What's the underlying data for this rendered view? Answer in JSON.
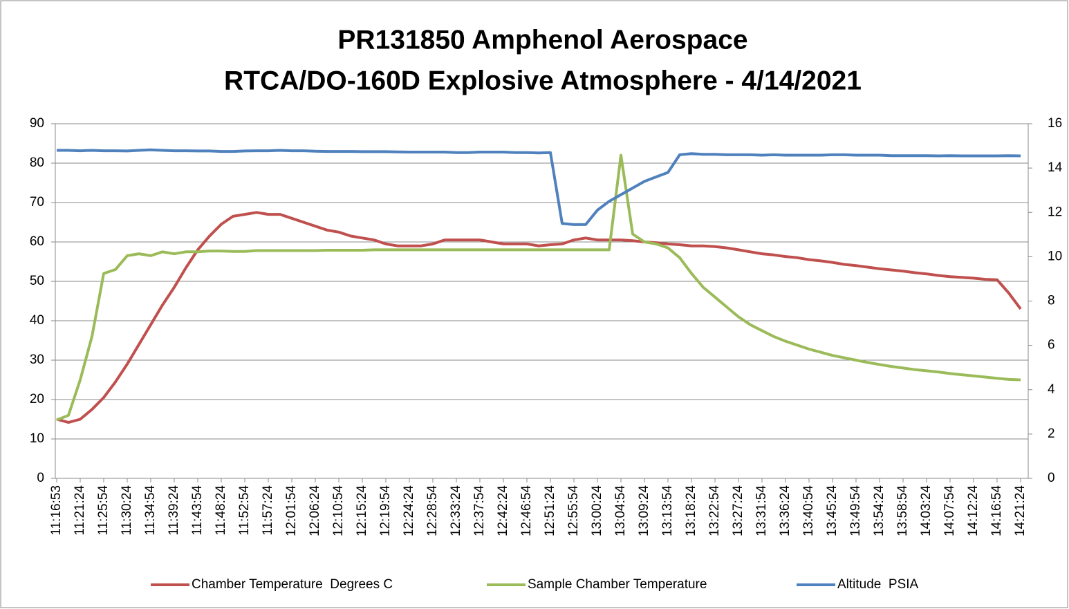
{
  "chart_data": {
    "type": "line",
    "title": [
      "PR131850 Amphenol Aerospace",
      "RTCA/DO-160D Explosive Atmosphere - 4/14/2021"
    ],
    "categories": [
      "11:16:53",
      null,
      "11:21:24",
      null,
      "11:25:54",
      null,
      "11:30:24",
      null,
      "11:34:54",
      null,
      "11:39:24",
      null,
      "11:43:54",
      null,
      "11:48:24",
      null,
      "11:52:54",
      null,
      "11:57:24",
      null,
      "12:01:54",
      null,
      "12:06:24",
      null,
      "12:10:54",
      null,
      "12:15:24",
      null,
      "12:19:54",
      null,
      "12:24:24",
      null,
      "12:28:54",
      null,
      "12:33:24",
      null,
      "12:37:54",
      null,
      "12:42:24",
      null,
      "12:46:54",
      null,
      "12:51:24",
      null,
      "12:55:54",
      null,
      "13:00:24",
      null,
      "13:04:54",
      null,
      "13:09:24",
      null,
      "13:13:54",
      null,
      "13:18:24",
      null,
      "13:22:54",
      null,
      "13:27:24",
      null,
      "13:31:54",
      null,
      "13:36:24",
      null,
      "13:40:54",
      null,
      "13:45:24",
      null,
      "13:49:54",
      null,
      "13:54:24",
      null,
      "13:58:54",
      null,
      "14:03:24",
      null,
      "14:07:54",
      null,
      "14:12:24",
      null,
      "14:16:54",
      null,
      "14:21:24"
    ],
    "series": [
      {
        "name": "Chamber Temperature  Degrees C",
        "color": "#c0504d",
        "values": [
          15,
          14.2,
          15,
          17.5,
          20.5,
          24.5,
          29,
          34,
          39,
          44,
          48.5,
          53.5,
          58,
          61.5,
          64.5,
          66.5,
          67,
          67.5,
          67,
          67,
          66,
          65,
          64,
          63,
          62.5,
          61.5,
          61,
          60.5,
          59.5,
          59,
          59,
          59,
          59.5,
          60.5,
          60.5,
          60.5,
          60.5,
          60,
          59.5,
          59.5,
          59.5,
          59,
          59.3,
          59.5,
          60.5,
          61,
          60.5,
          60.5,
          60.5,
          60.3,
          60,
          59.8,
          59.5,
          59.3,
          59,
          59,
          58.8,
          58.5,
          58,
          57.5,
          57,
          56.7,
          56.3,
          56,
          55.5,
          55.2,
          54.8,
          54.3,
          54,
          53.6,
          53.2,
          52.9,
          52.6,
          52.2,
          51.9,
          51.5,
          51.2,
          51,
          50.8,
          50.5,
          50.4,
          47,
          43
        ]
      },
      {
        "name": "Sample Chamber Temperature",
        "color": "#9bbb59",
        "values": [
          14.8,
          16,
          25,
          36,
          52,
          53,
          56.5,
          57,
          56.5,
          57.5,
          57,
          57.5,
          57.5,
          57.7,
          57.7,
          57.6,
          57.6,
          57.8,
          57.8,
          57.8,
          57.8,
          57.8,
          57.8,
          57.9,
          57.9,
          57.9,
          57.9,
          58,
          58,
          58,
          58,
          58,
          58,
          58,
          58,
          58,
          58,
          58,
          58,
          58,
          58,
          58,
          58,
          58,
          58,
          58,
          58,
          58,
          82,
          62,
          60,
          59.5,
          58.5,
          56,
          52,
          48.5,
          46,
          43.5,
          41,
          39,
          37.5,
          36,
          34.8,
          33.8,
          32.8,
          32,
          31.2,
          30.6,
          30,
          29.4,
          28.9,
          28.4,
          28,
          27.6,
          27.3,
          27,
          26.6,
          26.3,
          26,
          25.7,
          25.4,
          25.1,
          25
        ]
      },
      {
        "name": "Altitude  PSIA",
        "color": "#4f81bd",
        "axis": "y2",
        "values": [
          14.8,
          14.8,
          14.78,
          14.8,
          14.78,
          14.78,
          14.77,
          14.8,
          14.82,
          14.8,
          14.78,
          14.78,
          14.77,
          14.77,
          14.75,
          14.75,
          14.77,
          14.78,
          14.78,
          14.8,
          14.78,
          14.78,
          14.76,
          14.75,
          14.75,
          14.75,
          14.74,
          14.74,
          14.74,
          14.73,
          14.72,
          14.72,
          14.72,
          14.72,
          14.7,
          14.7,
          14.72,
          14.72,
          14.72,
          14.7,
          14.7,
          14.68,
          14.7,
          11.5,
          11.45,
          11.45,
          12.1,
          12.5,
          12.8,
          13.1,
          13.4,
          13.6,
          13.8,
          14.6,
          14.65,
          14.62,
          14.62,
          14.6,
          14.6,
          14.6,
          14.58,
          14.6,
          14.58,
          14.58,
          14.58,
          14.58,
          14.6,
          14.6,
          14.58,
          14.58,
          14.58,
          14.56,
          14.56,
          14.56,
          14.56,
          14.55,
          14.56,
          14.55,
          14.55,
          14.55,
          14.55,
          14.56,
          14.55
        ]
      }
    ],
    "ylim": [
      0,
      90
    ],
    "yticks": [
      0,
      10,
      20,
      30,
      40,
      50,
      60,
      70,
      80,
      90
    ],
    "y2lim": [
      0,
      16
    ],
    "y2ticks": [
      0,
      2,
      4,
      6,
      8,
      10,
      12,
      14,
      16
    ],
    "grid": true,
    "legend": "bottom"
  }
}
